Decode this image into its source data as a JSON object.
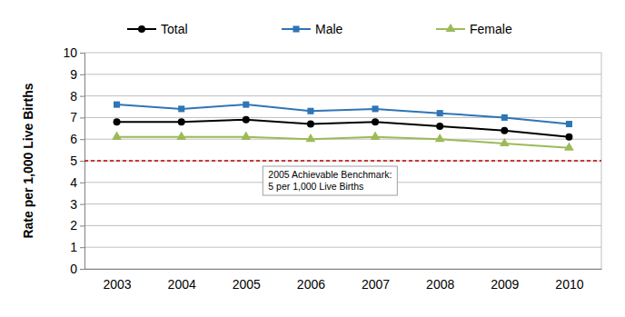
{
  "chart_data": {
    "type": "line",
    "y_label": "Rate per 1,000 Live Births",
    "categories": [
      "2003",
      "2004",
      "2005",
      "2006",
      "2007",
      "2008",
      "2009",
      "2010"
    ],
    "series": [
      {
        "name": "Total",
        "color": "#000000",
        "marker": "circle",
        "values": [
          6.8,
          6.8,
          6.9,
          6.7,
          6.8,
          6.6,
          6.4,
          6.1
        ]
      },
      {
        "name": "Male",
        "color": "#2e75b6",
        "marker": "square",
        "values": [
          7.6,
          7.4,
          7.6,
          7.3,
          7.4,
          7.2,
          7.0,
          6.7
        ]
      },
      {
        "name": "Female",
        "color": "#9bbb59",
        "marker": "triangle",
        "values": [
          6.1,
          6.1,
          6.1,
          6.0,
          6.1,
          6.0,
          5.8,
          5.6
        ]
      }
    ],
    "reference_line": {
      "value": 5,
      "label": [
        "2005 Achievable Benchmark:",
        "5 per 1,000 Live Births"
      ]
    },
    "ylim": [
      0,
      10
    ],
    "yticks": [
      0,
      1,
      2,
      3,
      4,
      5,
      6,
      7,
      8,
      9,
      10
    ],
    "grid": true,
    "legend": "top"
  }
}
